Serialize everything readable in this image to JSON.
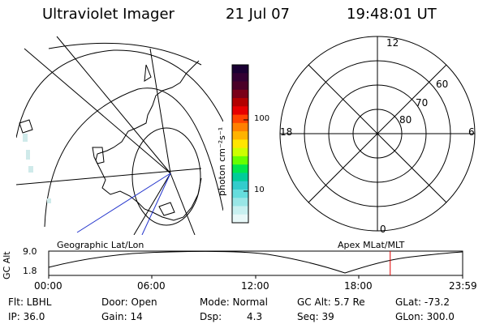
{
  "header": {
    "title": "Ultraviolet Imager",
    "date": "21 Jul 07",
    "time": "19:48:01 UT"
  },
  "colorbar": {
    "unit_label": "photon cm⁻²s⁻¹",
    "ticks": [
      "100",
      "10"
    ],
    "colors": [
      "#1a0033",
      "#330033",
      "#4a0028",
      "#7a0018",
      "#b20000",
      "#e60000",
      "#ff4400",
      "#ff8000",
      "#ffb300",
      "#ffe600",
      "#ccff00",
      "#66ff00",
      "#00e64d",
      "#00cc99",
      "#33cccc",
      "#66dddd",
      "#99e6e6",
      "#c8f0f0",
      "#e8f8f8"
    ]
  },
  "map_left": {
    "label": "Geographic Lat/Lon"
  },
  "polar_right": {
    "label": "Apex MLat/MLT",
    "clock_labels": {
      "top": "12",
      "left": "18",
      "right": "6",
      "bottom": "0"
    },
    "ring_labels": [
      "60",
      "70",
      "80"
    ]
  },
  "timeline": {
    "y_label": "GC Alt",
    "y_ticks": [
      "9.0",
      "1.8"
    ],
    "x_ticks": [
      "00:00",
      "06:00",
      "12:00",
      "18:00",
      "23:59"
    ],
    "current_time_fraction": 0.825
  },
  "info": {
    "filter": "Flt: LBHL",
    "ip": "IP: 36.0",
    "door": "Door: Open",
    "gain": "Gain: 14",
    "mode": "Mode: Normal",
    "dsp_label": "Dsp:",
    "dsp_value": "4.3",
    "gc_alt": "GC Alt: 5.7 Re",
    "seq": "Seq: 39",
    "glat": "GLat: -73.2",
    "glon": "GLon: 300.0"
  }
}
